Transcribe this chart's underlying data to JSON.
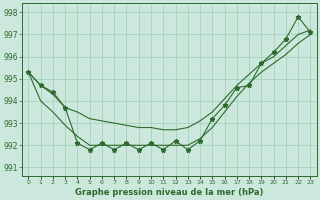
{
  "title": "Graphe pression niveau de la mer (hPa)",
  "x_labels": [
    "0",
    "1",
    "2",
    "3",
    "4",
    "5",
    "6",
    "7",
    "8",
    "9",
    "10",
    "11",
    "12",
    "13",
    "14",
    "15",
    "16",
    "17",
    "18",
    "19",
    "20",
    "21",
    "22",
    "23"
  ],
  "line_zigzag": [
    995.3,
    994.7,
    994.4,
    993.7,
    992.1,
    991.8,
    992.1,
    991.8,
    992.1,
    991.8,
    992.1,
    991.8,
    992.2,
    991.8,
    992.2,
    993.2,
    993.8,
    994.6,
    994.7,
    995.7,
    996.2,
    996.8,
    997.8,
    997.1
  ],
  "line_upper": [
    995.3,
    994.7,
    994.3,
    993.7,
    993.5,
    993.2,
    993.1,
    993.0,
    992.9,
    992.8,
    992.8,
    992.7,
    992.7,
    992.8,
    993.1,
    993.5,
    994.1,
    994.7,
    995.2,
    995.7,
    996.0,
    996.5,
    997.0,
    997.2
  ],
  "line_lower": [
    995.3,
    994.0,
    993.5,
    992.9,
    992.4,
    992.0,
    992.0,
    992.0,
    992.0,
    992.0,
    992.0,
    992.0,
    992.0,
    992.0,
    992.3,
    992.8,
    993.5,
    994.2,
    994.8,
    995.3,
    995.7,
    996.1,
    996.6,
    997.0
  ],
  "line_color": "#2d6a2d",
  "bg_color": "#cce8dc",
  "grid_color": "#9ecfba",
  "ylim": [
    990.6,
    998.4
  ],
  "yticks": [
    991,
    992,
    993,
    994,
    995,
    996,
    997,
    998
  ],
  "marker": "*",
  "marker_size": 3.5,
  "linewidth": 0.8
}
